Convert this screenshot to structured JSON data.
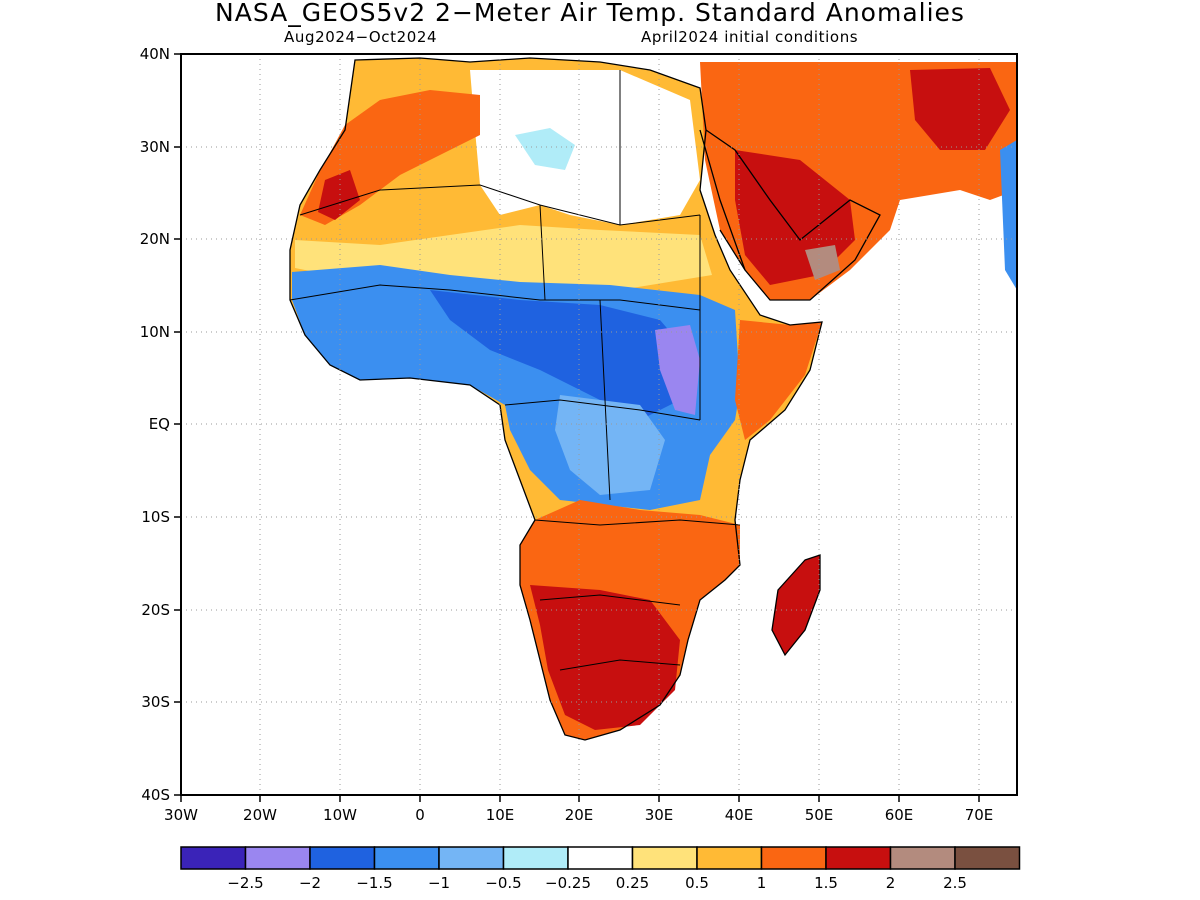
{
  "header": {
    "title": "NASA_GEOS5v2 2−Meter Air Temp. Standard Anomalies",
    "period": "Aug2024−Oct2024",
    "init": "April2024 initial conditions"
  },
  "map": {
    "lat_ticks": [
      "40N",
      "30N",
      "20N",
      "10N",
      "EQ",
      "10S",
      "20S",
      "30S",
      "40S"
    ],
    "lon_ticks": [
      "30W",
      "20W",
      "10W",
      "0",
      "10E",
      "20E",
      "30E",
      "40E",
      "50E",
      "60E",
      "70E"
    ],
    "grid": "dotted"
  },
  "legend": {
    "colors": [
      "#3a23b8",
      "#9a86f0",
      "#1f62e0",
      "#3b8ff0",
      "#74b5f5",
      "#b0ecf8",
      "#ffffff",
      "#ffe27a",
      "#ffba35",
      "#fa6612",
      "#c70f0f",
      "#b38b7e",
      "#7a5040"
    ],
    "labels": [
      "−2.5",
      "−2",
      "−1.5",
      "−1",
      "−0.5",
      "−0.25",
      "0.25",
      "0.5",
      "1",
      "1.5",
      "2",
      "2.5"
    ]
  },
  "regions": {
    "sahara_white": "#ffffff",
    "sahara_cool": "#b0ecf8",
    "sahel_cool": "#3b8ff0",
    "sahel_mid": "#74b5f5",
    "central_cool": "#1f62e0",
    "central_deep": "#9a86f0",
    "northwest_warm": "#ffba35",
    "northwest_hot": "#fa6612",
    "yellow_band": "#ffe27a",
    "arabia_hot": "#fa6612",
    "arabia_red": "#c70f0f",
    "south_hot": "#fa6612",
    "south_red": "#c70f0f",
    "brown": "#b38b7e"
  }
}
